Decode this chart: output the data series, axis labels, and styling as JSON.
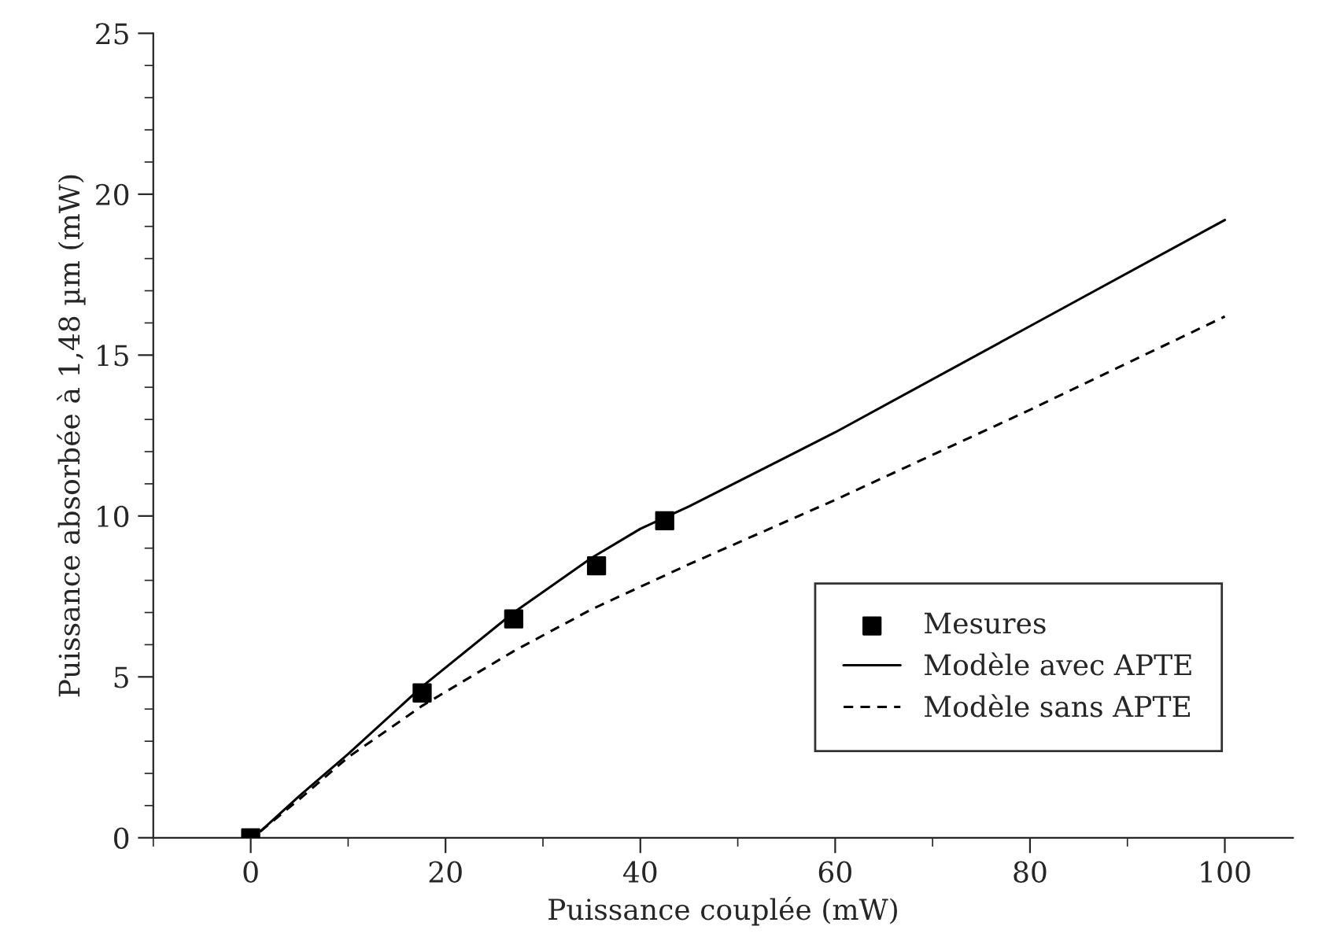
{
  "chart_data": {
    "type": "line",
    "xlabel": "Puissance couplée (mW)",
    "ylabel": "Puissance absorbée à 1,48 µm (mW)",
    "xlim": [
      -10,
      107
    ],
    "ylim": [
      0,
      25
    ],
    "xticks": [
      0,
      20,
      40,
      60,
      80,
      100
    ],
    "yticks": [
      0,
      5,
      10,
      15,
      20,
      25
    ],
    "grid": false,
    "legend": "bottom right",
    "series": [
      {
        "name": "Mesures",
        "type": "scatter",
        "marker": "square",
        "color": "#000000",
        "x": [
          0,
          17.6,
          27,
          35.5,
          42.5
        ],
        "values": [
          0,
          4.5,
          6.8,
          8.45,
          9.85
        ]
      },
      {
        "name": "Modèle avec APTE",
        "line_style": "solid",
        "color": "#000000",
        "x": [
          1,
          5,
          10,
          17.6,
          27,
          35,
          40,
          45,
          60,
          80,
          100
        ],
        "values": [
          0.2,
          1.3,
          2.6,
          4.7,
          7.0,
          8.7,
          9.6,
          10.3,
          12.6,
          15.9,
          19.2
        ]
      },
      {
        "name": "Modèle sans APTE",
        "line_style": "dashed",
        "color": "#000000",
        "x": [
          1,
          5,
          10,
          17.6,
          27,
          35,
          45,
          60,
          80,
          100
        ],
        "values": [
          0.2,
          1.2,
          2.5,
          4.1,
          5.8,
          7.1,
          8.5,
          10.5,
          13.3,
          16.2
        ]
      }
    ]
  }
}
